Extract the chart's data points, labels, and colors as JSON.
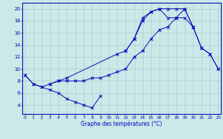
{
  "xlabel": "Graphe des températures (°C)",
  "bg_color": "#cce8e8",
  "line_color": "#0000bb",
  "grid_color": "#aacece",
  "xlim": [
    -0.3,
    23.3
  ],
  "ylim": [
    2.5,
    21.0
  ],
  "yticks": [
    4,
    6,
    8,
    10,
    12,
    14,
    16,
    18,
    20
  ],
  "xticks": [
    0,
    1,
    2,
    3,
    4,
    5,
    6,
    7,
    8,
    9,
    10,
    11,
    12,
    13,
    14,
    15,
    16,
    17,
    18,
    19,
    20,
    21,
    22,
    23
  ],
  "lines": [
    {
      "x": [
        0,
        1,
        2,
        3,
        4,
        5,
        6,
        7,
        8,
        9
      ],
      "y": [
        9,
        7.5,
        7,
        6.5,
        6,
        5,
        4.5,
        4,
        3.5,
        5.5
      ]
    },
    {
      "x": [
        0,
        1,
        2,
        3,
        4,
        5,
        6,
        7,
        8,
        9,
        10,
        11,
        12,
        13,
        14,
        15,
        16,
        17,
        18,
        19,
        20,
        21,
        22,
        23
      ],
      "y": [
        9,
        7.5,
        7,
        7.5,
        8,
        8,
        8,
        8,
        8.5,
        8.5,
        9,
        9.5,
        10,
        12,
        13,
        15,
        16.5,
        17,
        18.5,
        18.5,
        17,
        13.5,
        12.5,
        10
      ]
    },
    {
      "x": [
        3,
        4,
        5,
        11,
        12,
        13,
        14,
        15,
        16,
        17,
        18,
        19,
        20
      ],
      "y": [
        7.5,
        8,
        8.5,
        12.5,
        13,
        15,
        18,
        19.5,
        20,
        20,
        20,
        20,
        17
      ]
    },
    {
      "x": [
        12,
        13,
        14,
        15,
        16,
        17,
        18,
        19,
        20,
        21,
        22,
        23
      ],
      "y": [
        13,
        15,
        18.5,
        19.5,
        20,
        18.5,
        18.5,
        20,
        17,
        13.5,
        12.5,
        10
      ]
    }
  ]
}
